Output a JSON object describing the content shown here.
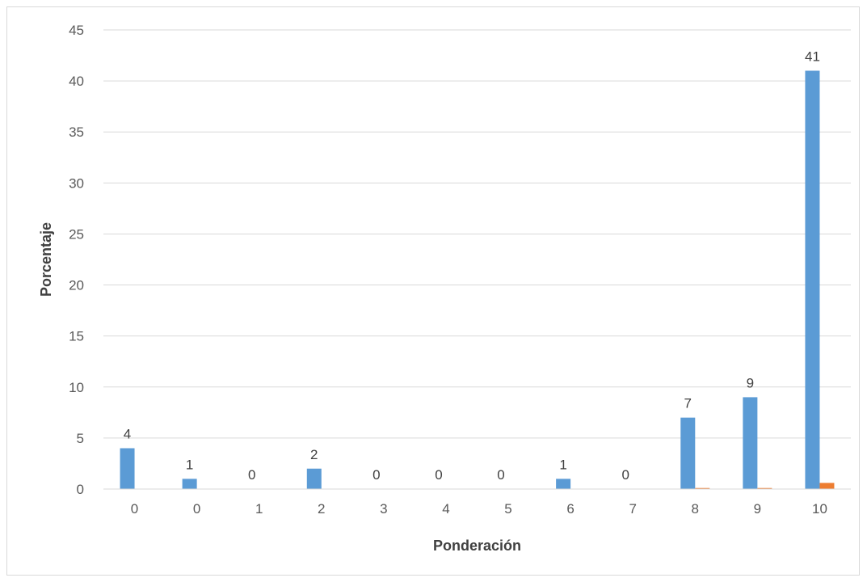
{
  "chart_data": {
    "type": "bar",
    "title": "",
    "xlabel": "Ponderación",
    "ylabel": "Porcentaje",
    "categories": [
      "0",
      "0",
      "1",
      "2",
      "3",
      "4",
      "5",
      "6",
      "7",
      "8",
      "9",
      "10"
    ],
    "series": [
      {
        "color": "#5b9bd5",
        "values": [
          4,
          1,
          0,
          2,
          0,
          0,
          0,
          1,
          0,
          7,
          9,
          41
        ],
        "data_labels": [
          "4",
          "1",
          "0",
          "2",
          "0",
          "0",
          "0",
          "1",
          "0",
          "7",
          "9",
          "41"
        ]
      },
      {
        "color": "#ed7d31",
        "values": [
          0,
          0,
          0,
          0,
          0,
          0,
          0,
          0,
          0,
          0.1,
          0.1,
          0.6
        ]
      }
    ],
    "ylim": [
      0,
      45
    ],
    "yticks": [
      "0",
      "5",
      "10",
      "15",
      "20",
      "25",
      "30",
      "35",
      "40",
      "45"
    ],
    "grid": true,
    "legend": "none"
  }
}
